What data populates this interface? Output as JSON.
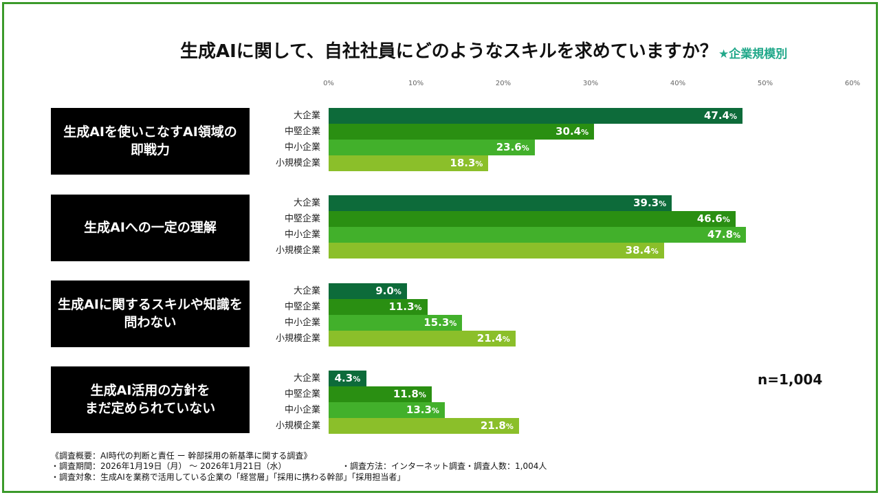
{
  "title": "生成AIに関して、自社社員にどのようなスキルを求めていますか？",
  "subtitle": "★企業規模別",
  "sample_size": "n=1,004",
  "colors": {
    "大企業": "#0d6b3a",
    "中堅企業": "#2a8f12",
    "中小企業": "#42b02b",
    "小規模企業": "#8bbf2a",
    "frame": "#3a9a2a",
    "subtitle": "#21a88a"
  },
  "chart_data": {
    "type": "bar",
    "orientation": "horizontal",
    "xlim": [
      0,
      60
    ],
    "x_ticks": [
      "0%",
      "10%",
      "20%",
      "30%",
      "40%",
      "50%",
      "60%"
    ],
    "series_names": [
      "大企業",
      "中堅企業",
      "中小企業",
      "小規模企業"
    ],
    "unit": "%",
    "groups": [
      {
        "label": "生成AIを使いこなすAI領域の\n即戦力",
        "values": [
          47.4,
          30.4,
          23.6,
          18.3
        ]
      },
      {
        "label": "生成AIへの一定の理解",
        "values": [
          39.3,
          46.6,
          47.8,
          38.4
        ]
      },
      {
        "label": "生成AIに関するスキルや知識を\n問わない",
        "values": [
          9.0,
          11.3,
          15.3,
          21.4
        ]
      },
      {
        "label": "生成AI活用の方針を\nまだ定められていない",
        "values": [
          4.3,
          11.8,
          13.3,
          21.8
        ]
      }
    ]
  },
  "notes": {
    "line1": "《調査概要：AI時代の判断と責任 ー 幹部採用の新基準に関する調査》",
    "line2": "・調査期間：2026年1月19日（月） 〜 2026年1月21日（水）",
    "line2b": "・調査方法：インターネット調査",
    "line2c": "・調査人数：1,004人",
    "line3": "・調査対象：生成AIを業務で活用している企業の「経営層」「採用に携わる幹部」「採用担当者」"
  }
}
